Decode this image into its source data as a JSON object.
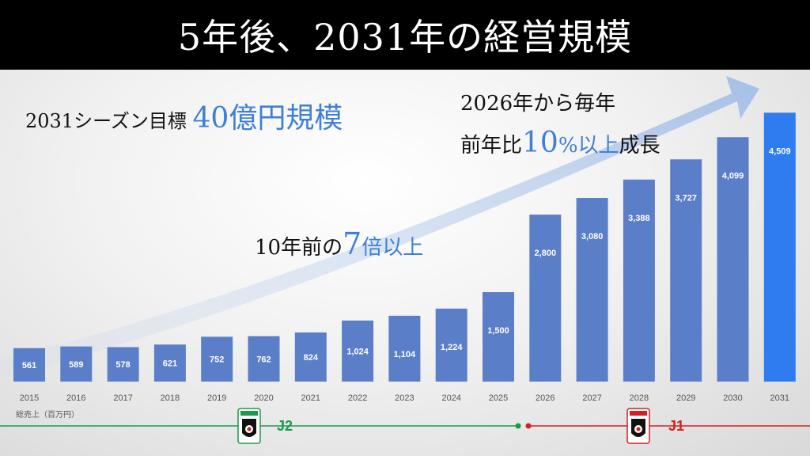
{
  "title": "5年後、2031年の経営規模",
  "headline_target": {
    "prefix": "2031シーズン目標",
    "value": "40億円規模"
  },
  "growth_note": {
    "line1": "2026年から毎年",
    "line2_prefix": "前年比",
    "line2_value": "10",
    "line2_pct": "%",
    "line2_mid": "以上",
    "line2_suffix": "成長"
  },
  "ten_years": {
    "prefix": "10年前の",
    "value": "7",
    "suffix": "倍以上"
  },
  "unit_label": "総売上（百万円）",
  "league_labels": {
    "j2": "J2",
    "j1": "J1"
  },
  "colors": {
    "bar": "#5b7ec9",
    "bar_highlight": "#2f7cf0",
    "j2": "#1a9a4a",
    "j1": "#d42020",
    "accent_text": "#3f7fd6"
  },
  "chart_data": {
    "type": "bar",
    "categories": [
      "2015",
      "2016",
      "2017",
      "2018",
      "2019",
      "2020",
      "2021",
      "2022",
      "2023",
      "2024",
      "2025",
      "2026",
      "2027",
      "2028",
      "2029",
      "2030",
      "2031"
    ],
    "values": [
      561,
      589,
      578,
      621,
      752,
      762,
      824,
      1024,
      1104,
      1224,
      1500,
      2800,
      3080,
      3388,
      3727,
      4099,
      4509
    ],
    "value_labels": [
      "561",
      "589",
      "578",
      "621",
      "752",
      "762",
      "824",
      "1,024",
      "1,104",
      "1,224",
      "1,500",
      "2,800",
      "3,080",
      "3,388",
      "3,727",
      "4,099",
      "4,509"
    ],
    "ylabel": "総売上（百万円）",
    "ylim": [
      0,
      4700
    ],
    "grid": false,
    "highlight_category": "2031",
    "league_segments": [
      {
        "label": "J2",
        "from": "2015",
        "to": "2025"
      },
      {
        "label": "J1",
        "from": "2026",
        "to": "2031"
      }
    ]
  }
}
